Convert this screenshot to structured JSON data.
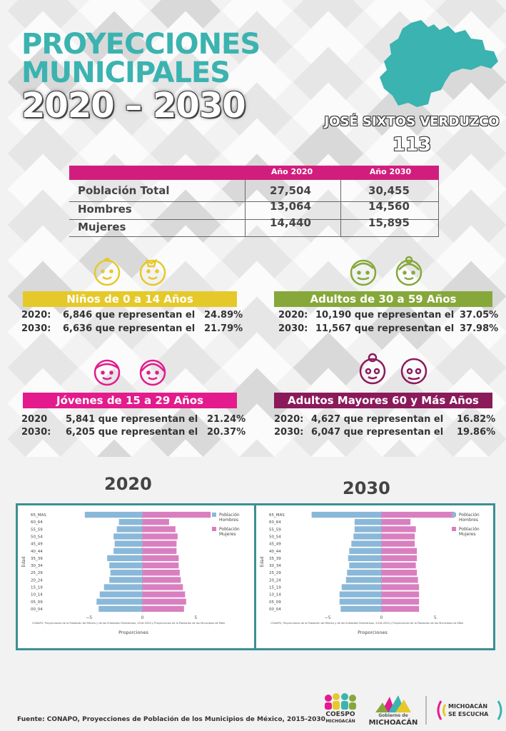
{
  "title": {
    "line1": "PROYECCIONES",
    "line2": "MUNICIPALES",
    "line3": "2020 – 2030"
  },
  "municipality": {
    "name": "JOSÉ SIXTOS VERDUZCO",
    "code": "113"
  },
  "colors": {
    "teal": "#3bb3b0",
    "magenta": "#d11e7e",
    "yellow": "#e5c92a",
    "green": "#86a83a",
    "purple": "#8b1a5b",
    "pink": "#e31b8c",
    "hombres": "#8ab8d8",
    "mujeres": "#d97fc0"
  },
  "table": {
    "col1": "Año 2020",
    "col2": "Año 2030",
    "rows": [
      {
        "label": "Población Total",
        "v2020": "27,504",
        "v2030": "30,455"
      },
      {
        "label": "Hombres",
        "v2020": "13,064",
        "v2030": "14,560"
      },
      {
        "label": "Mujeres",
        "v2020": "14,440",
        "v2030": "15,895"
      }
    ]
  },
  "groups": {
    "ninos": {
      "title": "Niños de 0 a 14 Años",
      "l1": {
        "year": "2020:",
        "count": "6,846 que representan el",
        "pct": "24.89%"
      },
      "l2": {
        "year": "2030:",
        "count": "6,636 que representan el",
        "pct": "21.79%"
      }
    },
    "adultos": {
      "title": "Adultos de 30 a 59 Años",
      "l1": {
        "year": "2020:",
        "count": "10,190 que representan el",
        "pct": "37.05%"
      },
      "l2": {
        "year": "2030:",
        "count": "11,567 que representan el",
        "pct": "37.98%"
      }
    },
    "jovenes": {
      "title": "Jóvenes de 15 a 29 Años",
      "l1": {
        "year": "2020",
        "count": "5,841 que representan el",
        "pct": "21.24%"
      },
      "l2": {
        "year": "2030:",
        "count": "6,205 que representan el",
        "pct": "20.37%"
      }
    },
    "mayores": {
      "title": "Adultos Mayores  60 y Más Años",
      "l1": {
        "year": "2020:",
        "count": "4,627 que representan el",
        "pct": "16.82%"
      },
      "l2": {
        "year": "2030:",
        "count": "6,047 que representan el",
        "pct": "19.86%"
      }
    }
  },
  "chart_data": [
    {
      "type": "bar",
      "heading": "2020",
      "categories": [
        "00_04",
        "05_09",
        "10_14",
        "15_19",
        "20_24",
        "25_29",
        "30_34",
        "35_39",
        "40_44",
        "45_49",
        "50_54",
        "55_59",
        "60_64",
        "65_MAS"
      ],
      "series": [
        {
          "name": "Población Hombres",
          "values": [
            -4.1,
            -4.3,
            -4.0,
            -3.6,
            -3.1,
            -3.0,
            -3.1,
            -3.3,
            -2.7,
            -2.6,
            -2.7,
            -2.4,
            -2.2,
            -5.4
          ]
        },
        {
          "name": "Población Mujeres",
          "values": [
            3.9,
            4.1,
            4.0,
            3.8,
            3.6,
            3.5,
            3.4,
            3.4,
            3.2,
            3.2,
            3.3,
            3.1,
            2.5,
            6.4
          ]
        }
      ],
      "ylabel": "Edad",
      "xlabel": "Proporciones",
      "xticks": [
        "−5",
        "0",
        "5"
      ],
      "xlim": [
        -9,
        10
      ],
      "source_note": "CONAPO, Proyecciones de la Población de México y de las Entidades Federativas, 2016-2050 y Proyecciones de la Población de los Municipios de Méxi",
      "legend": "top-right"
    },
    {
      "type": "bar",
      "heading": "2030",
      "categories": [
        "00_04",
        "05_09",
        "10_14",
        "15_19",
        "20_24",
        "25_29",
        "30_34",
        "35_39",
        "40_44",
        "45_49",
        "50_54",
        "55_59",
        "60_64",
        "65_MAS"
      ],
      "series": [
        {
          "name": "Población Hombres",
          "values": [
            -3.8,
            -3.9,
            -3.9,
            -3.7,
            -3.3,
            -3.2,
            -3.0,
            -3.1,
            -3.0,
            -2.8,
            -2.6,
            -2.5,
            -2.5,
            -6.5
          ]
        },
        {
          "name": "Población Mujeres",
          "values": [
            3.5,
            3.5,
            3.5,
            3.5,
            3.4,
            3.3,
            3.2,
            3.3,
            3.3,
            3.1,
            3.1,
            3.2,
            2.7,
            6.8
          ]
        }
      ],
      "ylabel": "Edad",
      "xlabel": "Proporciones",
      "xticks": [
        "−5",
        "0",
        "5"
      ],
      "xlim": [
        -9,
        10
      ],
      "source_note": "CONAPO, Proyecciones de la Población de México y de las Entidades Federativas, 2016-2050 y Proyecciones de la Población de los Municipios de Méxi",
      "legend": "top-right"
    }
  ],
  "footer": "Fuente: CONAPO, Proyecciones de Población de los Municipios de México, 2015-2030",
  "logos": {
    "coespo_1": "COESPO",
    "coespo_2": "MICHOACÁN",
    "gob_1": "Gobierno de",
    "gob_2": "MICHOACÁN",
    "escucha_1": "MICHOACÁN",
    "escucha_2": "SE ESCUCHA"
  }
}
